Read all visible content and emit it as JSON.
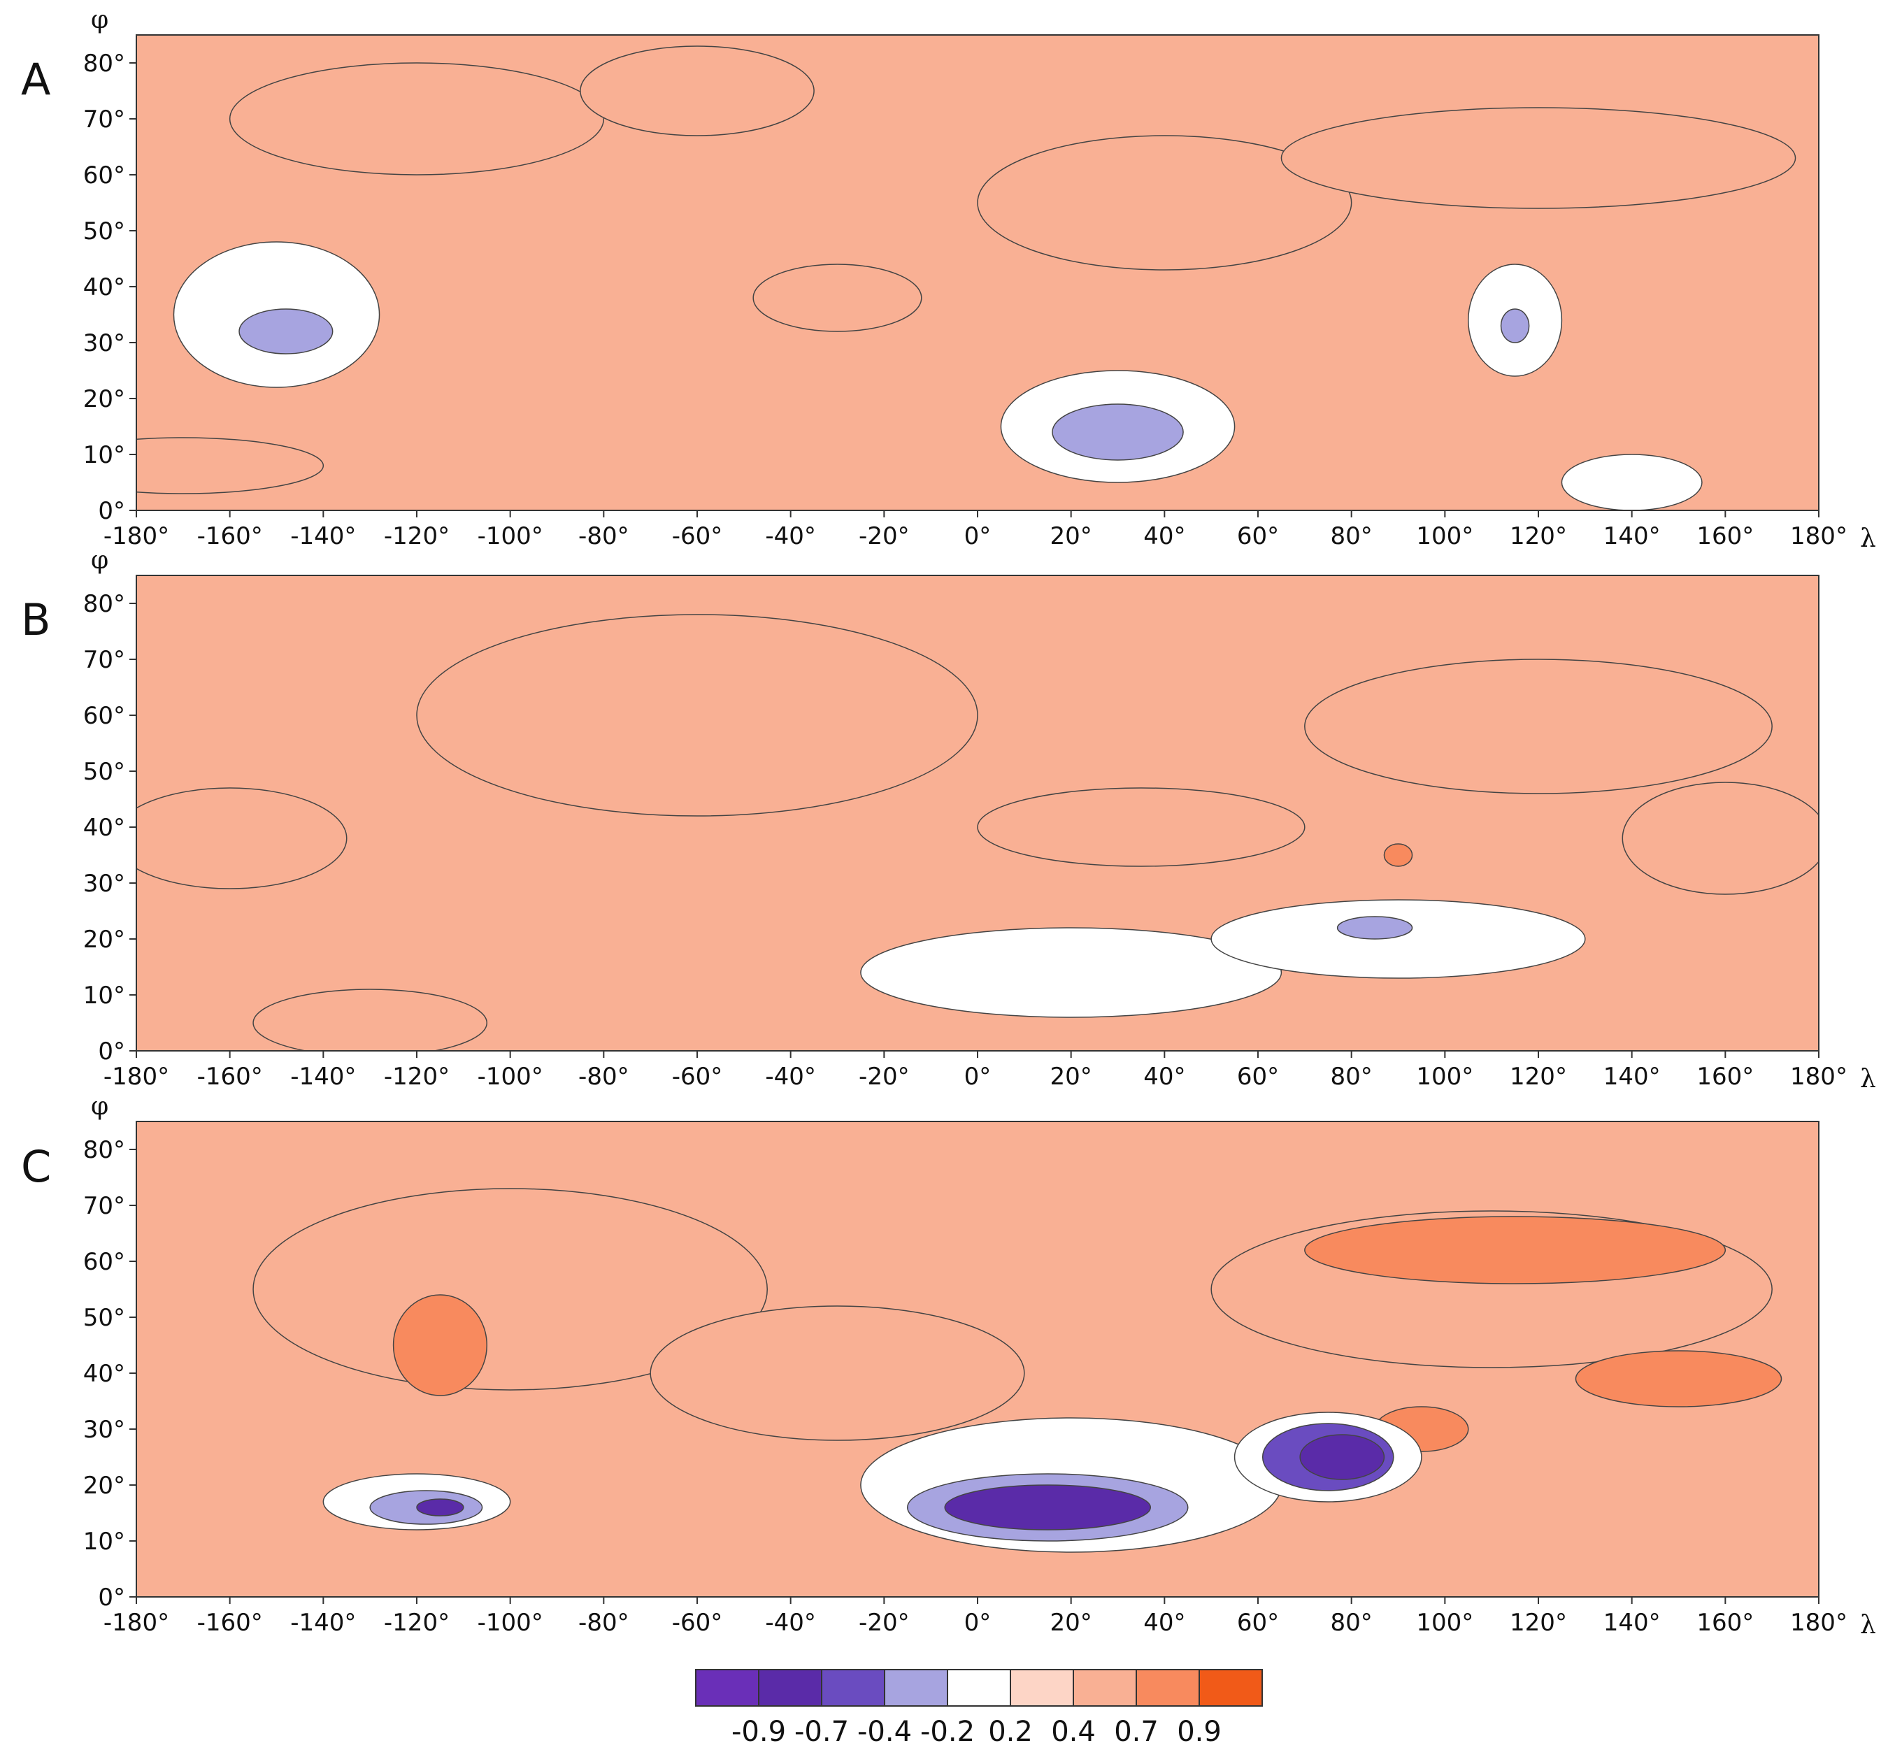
{
  "figure": {
    "panels": [
      {
        "letter": "A",
        "blobs": [
          {
            "lon": -120,
            "lat": 70,
            "rx": 40,
            "ry": 10,
            "c": 6
          },
          {
            "lon": -60,
            "lat": 75,
            "rx": 25,
            "ry": 8,
            "c": 6
          },
          {
            "lon": 40,
            "lat": 55,
            "rx": 40,
            "ry": 12,
            "c": 6
          },
          {
            "lon": 120,
            "lat": 63,
            "rx": 55,
            "ry": 9,
            "c": 6
          },
          {
            "lon": -170,
            "lat": 8,
            "rx": 30,
            "ry": 5,
            "c": 6
          },
          {
            "lon": -150,
            "lat": 35,
            "rx": 22,
            "ry": 13,
            "c": 4
          },
          {
            "lon": -148,
            "lat": 32,
            "rx": 10,
            "ry": 4,
            "c": 3
          },
          {
            "lon": -30,
            "lat": 38,
            "rx": 18,
            "ry": 6,
            "c": 6
          },
          {
            "lon": 30,
            "lat": 15,
            "rx": 25,
            "ry": 10,
            "c": 4
          },
          {
            "lon": 30,
            "lat": 14,
            "rx": 14,
            "ry": 5,
            "c": 3
          },
          {
            "lon": 115,
            "lat": 34,
            "rx": 10,
            "ry": 10,
            "c": 4
          },
          {
            "lon": 115,
            "lat": 33,
            "rx": 3,
            "ry": 3,
            "c": 3
          },
          {
            "lon": 140,
            "lat": 5,
            "rx": 15,
            "ry": 5,
            "c": 4
          }
        ]
      },
      {
        "letter": "B",
        "blobs": [
          {
            "lon": -60,
            "lat": 60,
            "rx": 60,
            "ry": 18,
            "c": 6
          },
          {
            "lon": 120,
            "lat": 58,
            "rx": 50,
            "ry": 12,
            "c": 6
          },
          {
            "lon": -160,
            "lat": 38,
            "rx": 25,
            "ry": 9,
            "c": 6
          },
          {
            "lon": 160,
            "lat": 38,
            "rx": 22,
            "ry": 10,
            "c": 6
          },
          {
            "lon": -130,
            "lat": 5,
            "rx": 25,
            "ry": 6,
            "c": 6
          },
          {
            "lon": 35,
            "lat": 40,
            "rx": 35,
            "ry": 7,
            "c": 6
          },
          {
            "lon": 20,
            "lat": 14,
            "rx": 45,
            "ry": 8,
            "c": 4
          },
          {
            "lon": 90,
            "lat": 20,
            "rx": 40,
            "ry": 7,
            "c": 4
          },
          {
            "lon": 85,
            "lat": 22,
            "rx": 8,
            "ry": 2,
            "c": 3
          },
          {
            "lon": 90,
            "lat": 35,
            "rx": 3,
            "ry": 2,
            "c": 7
          }
        ]
      },
      {
        "letter": "C",
        "blobs": [
          {
            "lon": -100,
            "lat": 55,
            "rx": 55,
            "ry": 18,
            "c": 6
          },
          {
            "lon": -30,
            "lat": 40,
            "rx": 40,
            "ry": 12,
            "c": 6
          },
          {
            "lon": 110,
            "lat": 55,
            "rx": 60,
            "ry": 14,
            "c": 6
          },
          {
            "lon": 115,
            "lat": 62,
            "rx": 45,
            "ry": 6,
            "c": 7
          },
          {
            "lon": 150,
            "lat": 39,
            "rx": 22,
            "ry": 5,
            "c": 7
          },
          {
            "lon": -115,
            "lat": 45,
            "rx": 10,
            "ry": 9,
            "c": 7
          },
          {
            "lon": 95,
            "lat": 30,
            "rx": 10,
            "ry": 4,
            "c": 7
          },
          {
            "lon": 20,
            "lat": 20,
            "rx": 45,
            "ry": 12,
            "c": 4
          },
          {
            "lon": 15,
            "lat": 16,
            "rx": 30,
            "ry": 6,
            "c": 3
          },
          {
            "lon": 15,
            "lat": 16,
            "rx": 22,
            "ry": 4,
            "c": 1
          },
          {
            "lon": 75,
            "lat": 25,
            "rx": 20,
            "ry": 8,
            "c": 4
          },
          {
            "lon": 75,
            "lat": 25,
            "rx": 14,
            "ry": 6,
            "c": 2
          },
          {
            "lon": 78,
            "lat": 25,
            "rx": 9,
            "ry": 4,
            "c": 1
          },
          {
            "lon": -120,
            "lat": 17,
            "rx": 20,
            "ry": 5,
            "c": 4
          },
          {
            "lon": -118,
            "lat": 16,
            "rx": 12,
            "ry": 3,
            "c": 3
          },
          {
            "lon": -115,
            "lat": 16,
            "rx": 5,
            "ry": 1.5,
            "c": 1
          }
        ]
      }
    ],
    "x_ticks": [
      "-180°",
      "-160°",
      "-140°",
      "-120°",
      "-100°",
      "-80°",
      "-60°",
      "-40°",
      "-20°",
      "0°",
      "20°",
      "40°",
      "60°",
      "80°",
      "100°",
      "120°",
      "140°",
      "160°",
      "180°"
    ],
    "y_ticks": [
      "0°",
      "10°",
      "20°",
      "30°",
      "40°",
      "50°",
      "60°",
      "70°",
      "80°"
    ],
    "x_axis_symbol": "λ",
    "y_axis_symbol": "φ"
  },
  "legend": {
    "boundaries": [
      "-0.9",
      "-0.7",
      "-0.4",
      "-0.2",
      "0.2",
      "0.4",
      "0.7",
      "0.9"
    ],
    "colors": [
      "#6a2fb8",
      "#5a2ba8",
      "#6a4cc0",
      "#a7a4e0",
      "#ffffff",
      "#fdd5c6",
      "#f9b094",
      "#f88a5e",
      "#f15a18"
    ]
  }
}
